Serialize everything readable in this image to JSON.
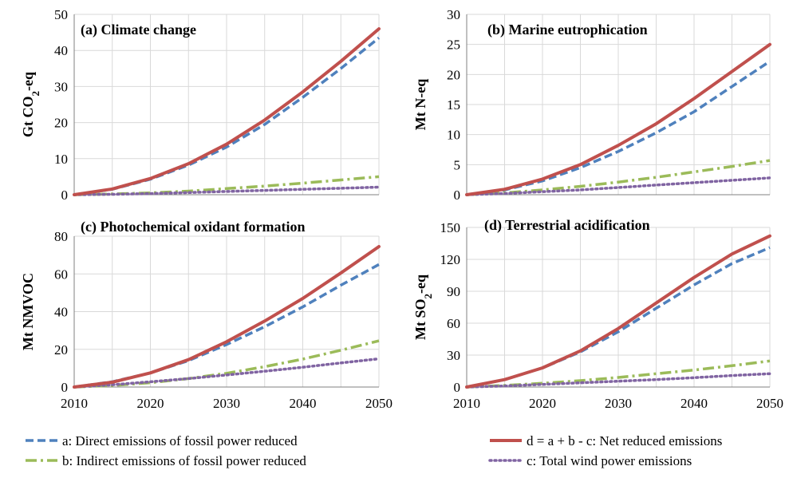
{
  "colors": {
    "a": "#4f81bd",
    "b": "#9bbb59",
    "c": "#8064a2",
    "d": "#c0504d"
  },
  "legend": {
    "a": "a: Direct emissions of fossil power reduced",
    "b": "b: Indirect emissions of fossil power reduced",
    "d": "d = a + b - c: Net reduced emissions",
    "c": "c: Total wind power emissions"
  },
  "chart_data": [
    {
      "type": "line",
      "title": "(a) Climate change",
      "ylabel_main": "Gt CO",
      "ylabel_sub": "2",
      "ylabel_tail": "-eq",
      "ylim": [
        0,
        50
      ],
      "yticks": [
        0,
        10,
        20,
        30,
        40,
        50
      ],
      "xlim": [
        2010,
        2050
      ],
      "xticks": [],
      "x": [
        2010,
        2015,
        2020,
        2025,
        2030,
        2035,
        2040,
        2045,
        2050
      ],
      "series": [
        {
          "key": "a",
          "name": "a: Direct emissions of fossil power reduced",
          "values": [
            0,
            1.5,
            4.3,
            8.2,
            13.2,
            19.5,
            27.0,
            35.0,
            43.5
          ]
        },
        {
          "key": "b",
          "name": "b: Indirect emissions of fossil power reduced",
          "values": [
            0,
            0.2,
            0.5,
            1.0,
            1.7,
            2.4,
            3.2,
            4.1,
            5.0
          ]
        },
        {
          "key": "c",
          "name": "c: Total wind power emissions",
          "values": [
            0,
            0.1,
            0.3,
            0.6,
            0.9,
            1.2,
            1.5,
            1.8,
            2.1
          ]
        },
        {
          "key": "d",
          "name": "d = a + b - c: Net reduced emissions",
          "values": [
            0,
            1.6,
            4.5,
            8.6,
            14.0,
            20.7,
            28.5,
            37.0,
            46.0
          ]
        }
      ]
    },
    {
      "type": "line",
      "title": "(b) Marine eutrophication",
      "ylabel_main": "Mt N-eq",
      "ylabel_sub": "",
      "ylabel_tail": "",
      "ylim": [
        0,
        30
      ],
      "yticks": [
        0,
        5,
        10,
        15,
        20,
        25,
        30
      ],
      "xlim": [
        2010,
        2050
      ],
      "xticks": [],
      "x": [
        2010,
        2015,
        2020,
        2025,
        2030,
        2035,
        2040,
        2045,
        2050
      ],
      "series": [
        {
          "key": "a",
          "name": "a: Direct emissions of fossil power reduced",
          "values": [
            0,
            0.8,
            2.3,
            4.5,
            7.2,
            10.3,
            13.8,
            18.0,
            22.2
          ]
        },
        {
          "key": "b",
          "name": "b: Indirect emissions of fossil power reduced",
          "values": [
            0,
            0.3,
            0.8,
            1.4,
            2.1,
            2.9,
            3.8,
            4.7,
            5.7
          ]
        },
        {
          "key": "c",
          "name": "c: Total wind power emissions",
          "values": [
            0,
            0.2,
            0.5,
            0.8,
            1.2,
            1.6,
            2.0,
            2.4,
            2.8
          ]
        },
        {
          "key": "d",
          "name": "d = a + b - c: Net reduced emissions",
          "values": [
            0,
            0.9,
            2.6,
            5.0,
            8.2,
            11.8,
            16.0,
            20.5,
            25.0
          ]
        }
      ]
    },
    {
      "type": "line",
      "title": "(c) Photochemical oxidant formation",
      "ylabel_main": "Mt NMVOC",
      "ylabel_sub": "",
      "ylabel_tail": "",
      "ylim": [
        0,
        80
      ],
      "yticks": [
        0,
        20,
        40,
        60,
        80
      ],
      "xlim": [
        2010,
        2050
      ],
      "xticks": [
        2010,
        2020,
        2030,
        2040,
        2050
      ],
      "x": [
        2010,
        2015,
        2020,
        2025,
        2030,
        2035,
        2040,
        2045,
        2050
      ],
      "series": [
        {
          "key": "a",
          "name": "a: Direct emissions of fossil power reduced",
          "values": [
            0,
            2.8,
            7.5,
            14.0,
            22.5,
            32.0,
            42.5,
            54.0,
            65.0
          ]
        },
        {
          "key": "b",
          "name": "b: Indirect emissions of fossil power reduced",
          "values": [
            0,
            0.8,
            2.3,
            4.5,
            7.3,
            10.8,
            14.8,
            19.5,
            24.5
          ]
        },
        {
          "key": "c",
          "name": "c: Total wind power emissions",
          "values": [
            0,
            1.2,
            2.8,
            4.5,
            6.4,
            8.4,
            10.5,
            12.8,
            15.0
          ]
        },
        {
          "key": "d",
          "name": "d = a + b - c: Net reduced emissions",
          "values": [
            0,
            2.6,
            7.5,
            14.5,
            24.0,
            35.0,
            47.0,
            60.5,
            74.5
          ]
        }
      ]
    },
    {
      "type": "line",
      "title": "(d)  Terrestrial acidification",
      "ylabel_main": "Mt SO",
      "ylabel_sub": "2",
      "ylabel_tail": "-eq",
      "ylim": [
        0,
        150
      ],
      "yticks": [
        0,
        30,
        60,
        90,
        120,
        150
      ],
      "xlim": [
        2010,
        2050
      ],
      "xticks": [
        2010,
        2020,
        2030,
        2040,
        2050
      ],
      "x": [
        2010,
        2015,
        2020,
        2025,
        2030,
        2035,
        2040,
        2045,
        2050
      ],
      "series": [
        {
          "key": "a",
          "name": "a: Direct emissions of fossil power reduced",
          "values": [
            0,
            7,
            18,
            33,
            52,
            74,
            96,
            116,
            131
          ]
        },
        {
          "key": "b",
          "name": "b: Indirect emissions of fossil power reduced",
          "values": [
            0,
            1.5,
            3.5,
            6.0,
            9.0,
            12.5,
            16.0,
            20.0,
            24.5
          ]
        },
        {
          "key": "c",
          "name": "c: Total wind power emissions",
          "values": [
            0,
            1.0,
            2.5,
            4.0,
            5.5,
            7.0,
            8.8,
            10.8,
            12.5
          ]
        },
        {
          "key": "d",
          "name": "d = a + b - c: Net reduced emissions",
          "values": [
            0,
            7,
            18,
            34,
            55,
            79,
            103,
            125,
            142
          ]
        }
      ]
    }
  ]
}
